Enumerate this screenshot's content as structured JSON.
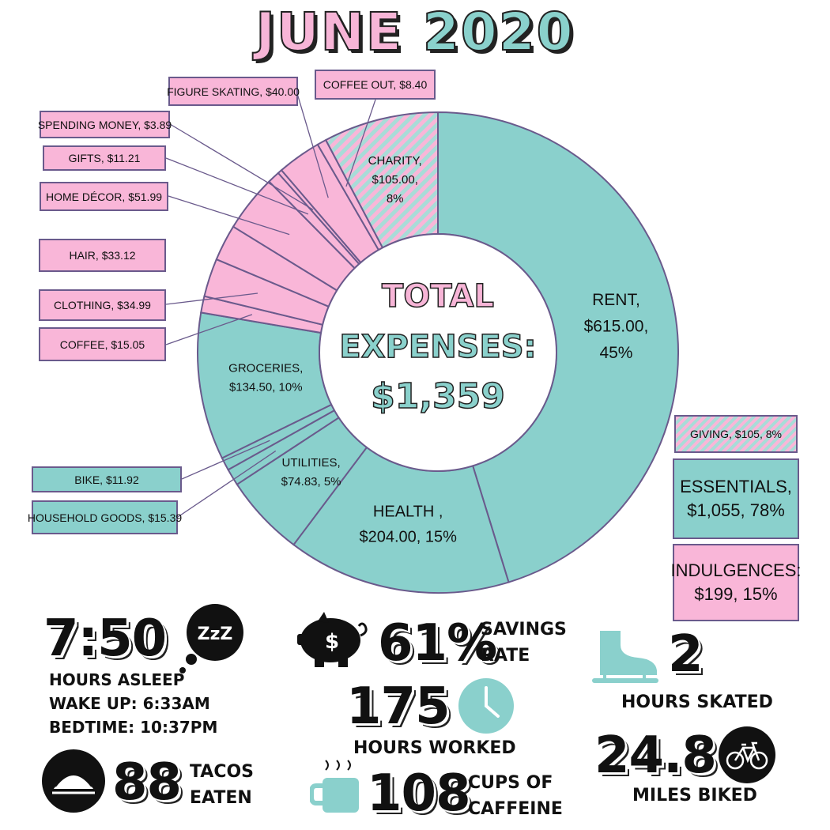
{
  "title": {
    "part1": "JUNE ",
    "part2": "2020"
  },
  "center": {
    "line1": "TOTAL",
    "line2": "EXPENSES:",
    "line3": "$1,359"
  },
  "chart_data": {
    "type": "pie",
    "title": "JUNE 2020",
    "total": "$1,359",
    "slices": [
      {
        "label": "Rent",
        "value": 615.0,
        "percent": 45,
        "group": "essentials",
        "text": [
          "RENT,",
          "$615.00,",
          "45%"
        ]
      },
      {
        "label": "Health",
        "value": 204.0,
        "percent": 15,
        "group": "essentials",
        "text": [
          "HEALTH ,",
          "$204.00, 15%"
        ]
      },
      {
        "label": "Utilities",
        "value": 74.83,
        "percent": 5,
        "group": "essentials",
        "text": [
          "UTILITIES,",
          "$74.83, 5%"
        ]
      },
      {
        "label": "Household Goods",
        "value": 15.39,
        "group": "essentials"
      },
      {
        "label": "Bike",
        "value": 11.92,
        "group": "essentials"
      },
      {
        "label": "Groceries",
        "value": 134.5,
        "percent": 10,
        "group": "essentials",
        "text": [
          "GROCERIES,",
          "$134.50, 10%"
        ]
      },
      {
        "label": "Coffee",
        "value": 15.05,
        "group": "indulgences"
      },
      {
        "label": "Clothing",
        "value": 34.99,
        "group": "indulgences"
      },
      {
        "label": "Hair",
        "value": 33.12,
        "group": "indulgences"
      },
      {
        "label": "Home Décor",
        "value": 51.99,
        "group": "indulgences"
      },
      {
        "label": "Gifts",
        "value": 11.21,
        "group": "indulgences"
      },
      {
        "label": "Spending Money",
        "value": 3.89,
        "group": "indulgences"
      },
      {
        "label": "Figure Skating",
        "value": 40.0,
        "group": "indulgences"
      },
      {
        "label": "Coffee Out",
        "value": 8.4,
        "group": "indulgences"
      },
      {
        "label": "Charity",
        "value": 105.0,
        "percent": 8,
        "group": "giving",
        "text": [
          "CHARITY,",
          "$105.00,",
          "8%"
        ]
      }
    ],
    "colors": {
      "essentials": "#8ad0cc",
      "indulgences": "#f9b6d8",
      "giving": "#f9b6d8/#a8dcd8 hatch",
      "outline": "#6a5a8c"
    }
  },
  "callouts": {
    "coffee_out": "COFFEE OUT, $8.40",
    "figure_skating": "FIGURE SKATING, $40.00",
    "spending_money": "SPENDING MONEY, $3.89",
    "gifts": "GIFTS, $11.21",
    "home_decor": "HOME DÉCOR, $51.99",
    "hair": "HAIR, $33.12",
    "clothing": "CLOTHING, $34.99",
    "coffee": "COFFEE, $15.05",
    "bike": "BIKE, $11.92",
    "household": "HOUSEHOLD GOODS, $15.39"
  },
  "legend": {
    "giving": "GIVING, $105, 8%",
    "essentials_l1": "ESSENTIALS,",
    "essentials_l2": "$1,055, 78%",
    "indulgences_l1": "INDULGENCES:",
    "indulgences_l2": "$199, 15%"
  },
  "stats": {
    "sleep": {
      "value": "7:50",
      "label": "HOURS ASLEEP",
      "wake": "WAKE UP: 6:33AM",
      "bed": "BEDTIME: 10:37PM",
      "icon": "zzz-bubble-icon"
    },
    "savings": {
      "value": "61%",
      "label1": "SAVINGS",
      "label2": "RATE",
      "icon": "piggy-bank-icon"
    },
    "skate": {
      "value": "2",
      "label": "HOURS SKATED",
      "icon": "ice-skate-icon"
    },
    "work": {
      "value": "175",
      "label": "HOURS WORKED",
      "icon": "clock-icon"
    },
    "tacos": {
      "value": "88",
      "label1": "TACOS",
      "label2": "EATEN",
      "icon": "taco-icon"
    },
    "caffeine": {
      "value": "108",
      "label1": "CUPS OF",
      "label2": "CAFFEINE",
      "icon": "coffee-cup-icon"
    },
    "bike": {
      "value": "24.8",
      "label": "MILES BIKED",
      "icon": "bicycle-icon"
    }
  }
}
